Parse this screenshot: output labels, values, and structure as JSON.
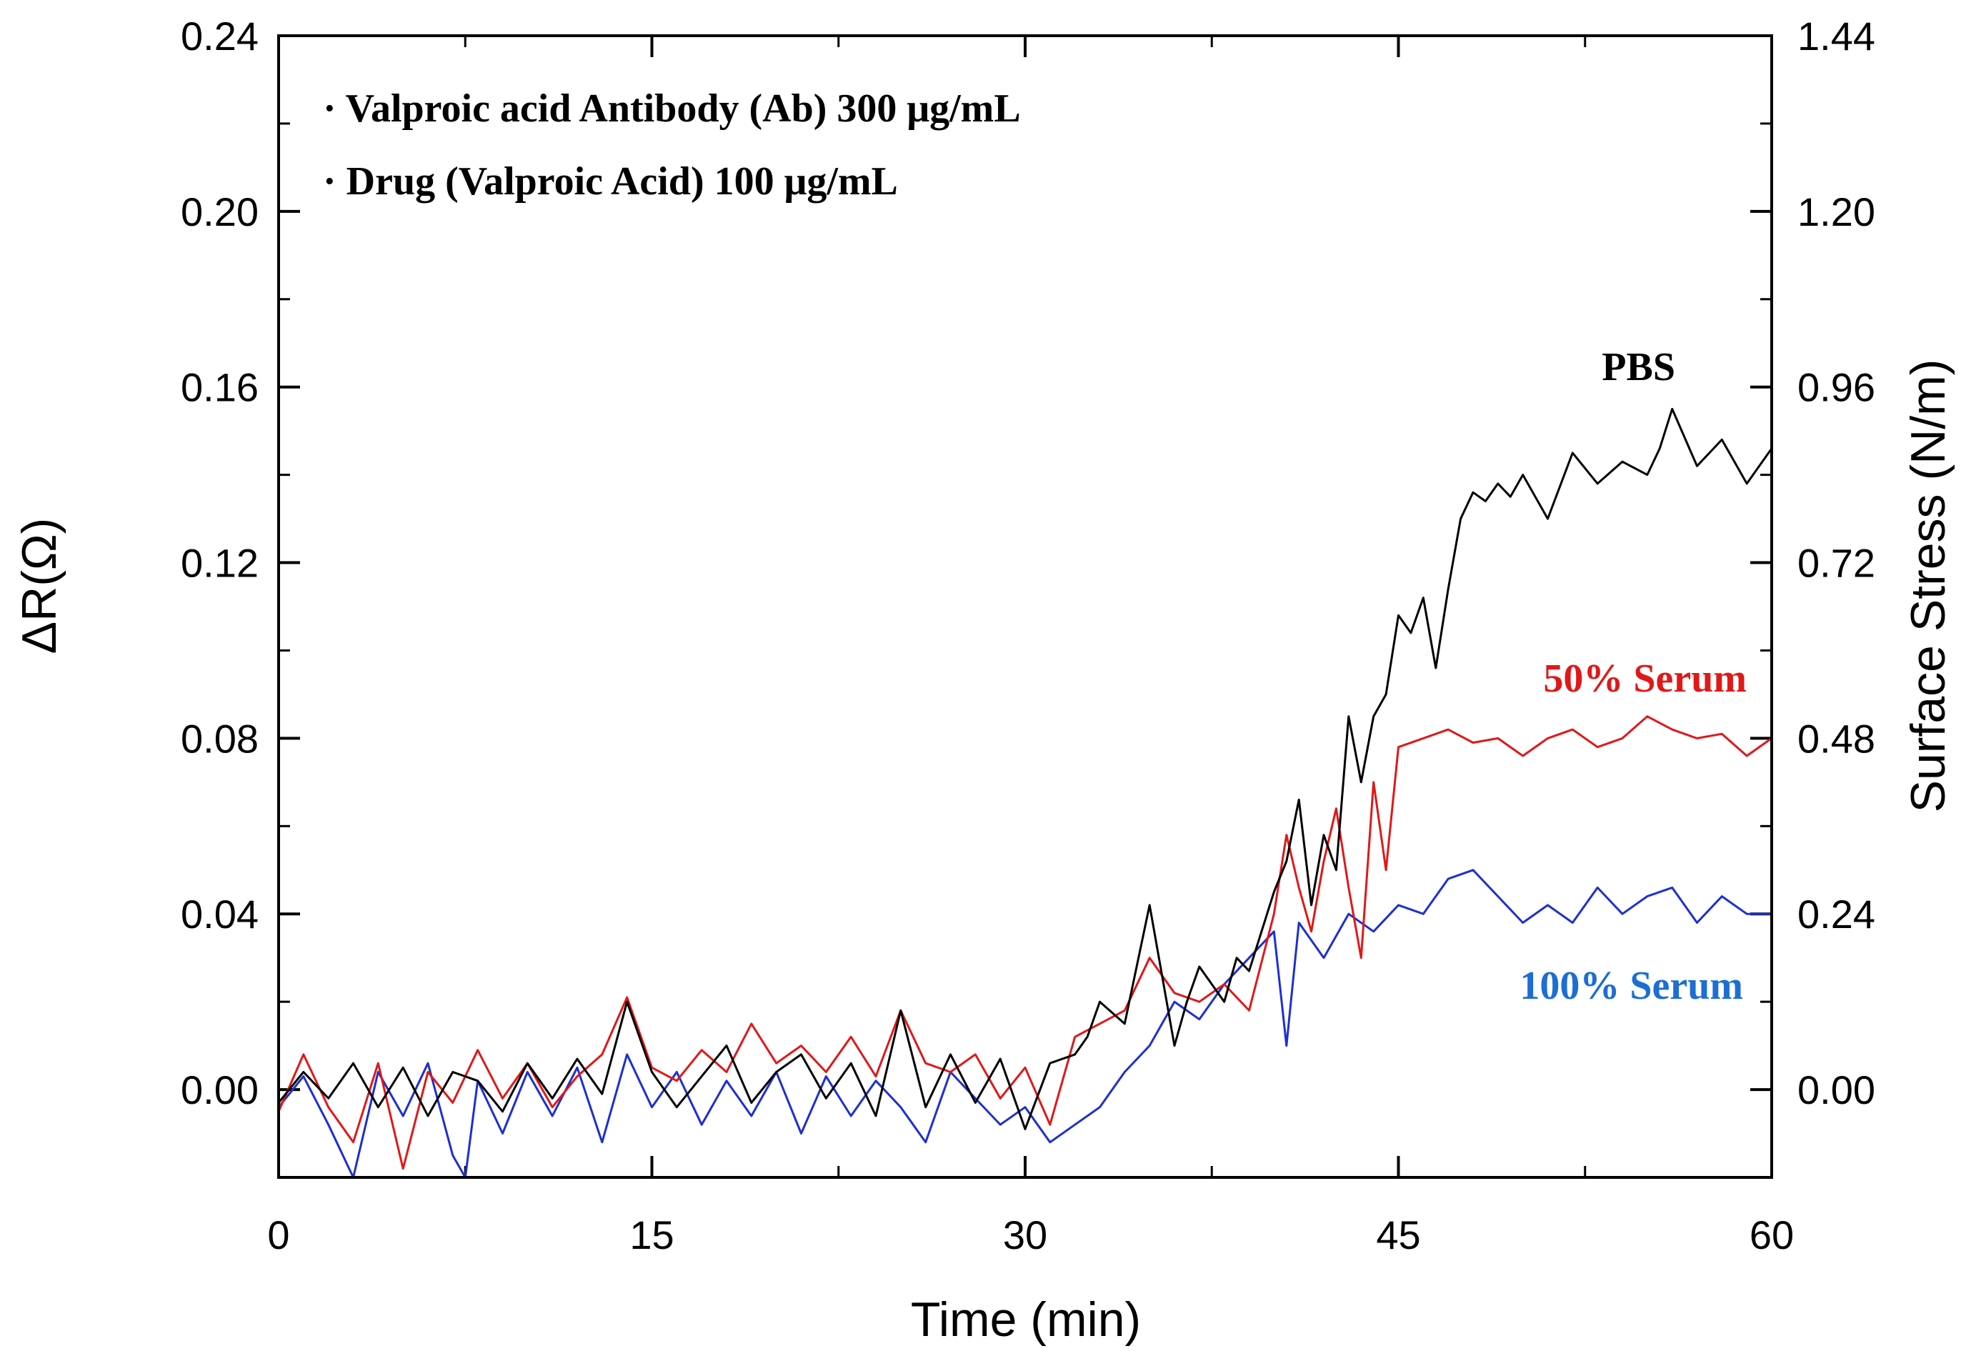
{
  "chart_data": {
    "type": "line",
    "title": "",
    "xlabel": "Time (min)",
    "ylabel": "ΔR(Ω)",
    "y2label": "Surface Stress (N/m)",
    "xlim": [
      0,
      60
    ],
    "ylim": [
      -0.02,
      0.24
    ],
    "y2lim": [
      -0.12,
      1.44
    ],
    "x_ticks": [
      0,
      15,
      30,
      45,
      60
    ],
    "x_tick_labels": [
      "0",
      "15",
      "30",
      "45",
      "60"
    ],
    "y_ticks": [
      0.0,
      0.04,
      0.08,
      0.12,
      0.16,
      0.2,
      0.24
    ],
    "y_tick_labels": [
      "0.00",
      "0.04",
      "0.08",
      "0.12",
      "0.16",
      "0.20",
      "0.24"
    ],
    "y2_ticks": [
      0.0,
      0.24,
      0.48,
      0.72,
      0.96,
      1.2,
      1.44
    ],
    "y2_tick_labels": [
      "0.00",
      "0.24",
      "0.48",
      "0.72",
      "0.96",
      "1.20",
      "1.44"
    ],
    "annotations": [
      "· Valproic acid Antibody (Ab) 300 μg/mL",
      "· Drug (Valproic Acid) 100 μg/mL"
    ],
    "series": [
      {
        "name": "PBS",
        "color": "#000000",
        "x": [
          0,
          1,
          2,
          3,
          4,
          5,
          6,
          7,
          8,
          9,
          10,
          11,
          12,
          13,
          14,
          15,
          16,
          17,
          18,
          19,
          20,
          21,
          22,
          23,
          24,
          25,
          26,
          27,
          28,
          29,
          30,
          31,
          32,
          32.5,
          33,
          34,
          35,
          36,
          36.5,
          37,
          38,
          38.5,
          39,
          40,
          40.5,
          41,
          41.5,
          42,
          42.5,
          43,
          43.5,
          44,
          44.5,
          45,
          45.5,
          46,
          46.5,
          47,
          47.5,
          48,
          48.5,
          49,
          49.5,
          50,
          51,
          52,
          53,
          54,
          55,
          55.5,
          56,
          57,
          58,
          59,
          60
        ],
        "y": [
          -0.003,
          0.004,
          -0.002,
          0.006,
          -0.004,
          0.005,
          -0.006,
          0.004,
          0.002,
          -0.005,
          0.006,
          -0.002,
          0.007,
          -0.001,
          0.02,
          0.004,
          -0.004,
          0.003,
          0.01,
          -0.003,
          0.004,
          0.008,
          -0.002,
          0.006,
          -0.006,
          0.018,
          -0.004,
          0.008,
          -0.003,
          0.007,
          -0.009,
          0.006,
          0.008,
          0.012,
          0.02,
          0.015,
          0.042,
          0.01,
          0.02,
          0.028,
          0.02,
          0.03,
          0.027,
          0.045,
          0.052,
          0.066,
          0.042,
          0.058,
          0.05,
          0.085,
          0.07,
          0.085,
          0.09,
          0.108,
          0.104,
          0.112,
          0.096,
          0.114,
          0.13,
          0.136,
          0.134,
          0.138,
          0.135,
          0.14,
          0.13,
          0.145,
          0.138,
          0.143,
          0.14,
          0.146,
          0.155,
          0.142,
          0.148,
          0.138,
          0.146
        ]
      },
      {
        "name": "50% Serum",
        "color": "#e01818",
        "x": [
          0,
          1,
          2,
          3,
          4,
          5,
          6,
          7,
          8,
          9,
          10,
          11,
          12,
          13,
          14,
          15,
          16,
          17,
          18,
          19,
          20,
          21,
          22,
          23,
          24,
          25,
          26,
          27,
          28,
          29,
          30,
          31,
          32,
          33,
          34,
          35,
          36,
          37,
          38,
          39,
          40,
          40.5,
          41,
          41.5,
          42,
          42.5,
          43,
          43.5,
          44,
          44.5,
          45,
          46,
          47,
          48,
          49,
          50,
          51,
          52,
          53,
          54,
          55,
          56,
          57,
          58,
          59,
          60
        ],
        "y": [
          -0.005,
          0.008,
          -0.004,
          -0.012,
          0.006,
          -0.018,
          0.004,
          -0.003,
          0.009,
          -0.002,
          0.006,
          -0.004,
          0.003,
          0.008,
          0.021,
          0.005,
          0.002,
          0.009,
          0.004,
          0.015,
          0.006,
          0.01,
          0.004,
          0.012,
          0.003,
          0.018,
          0.006,
          0.004,
          0.008,
          -0.002,
          0.005,
          -0.008,
          0.012,
          0.015,
          0.018,
          0.03,
          0.022,
          0.02,
          0.024,
          0.018,
          0.04,
          0.058,
          0.046,
          0.036,
          0.052,
          0.064,
          0.046,
          0.03,
          0.07,
          0.05,
          0.078,
          0.08,
          0.082,
          0.079,
          0.08,
          0.076,
          0.08,
          0.082,
          0.078,
          0.08,
          0.085,
          0.082,
          0.08,
          0.081,
          0.076,
          0.08
        ]
      },
      {
        "name": "100% Serum",
        "color": "#1c2fd4",
        "x": [
          0,
          1,
          2,
          3,
          4,
          5,
          6,
          7,
          7.5,
          8,
          9,
          10,
          11,
          12,
          13,
          14,
          15,
          16,
          17,
          18,
          19,
          20,
          21,
          22,
          23,
          24,
          25,
          26,
          27,
          28,
          29,
          30,
          31,
          32,
          33,
          34,
          35,
          36,
          37,
          38,
          39,
          40,
          40.5,
          41,
          42,
          43,
          44,
          45,
          46,
          47,
          48,
          49,
          50,
          51,
          52,
          53,
          54,
          55,
          56,
          57,
          58,
          59,
          60
        ],
        "y": [
          -0.004,
          0.003,
          -0.008,
          -0.02,
          0.004,
          -0.006,
          0.006,
          -0.015,
          -0.02,
          0.002,
          -0.01,
          0.004,
          -0.006,
          0.005,
          -0.012,
          0.008,
          -0.004,
          0.004,
          -0.008,
          0.002,
          -0.006,
          0.004,
          -0.01,
          0.003,
          -0.006,
          0.002,
          -0.004,
          -0.012,
          0.004,
          -0.002,
          -0.008,
          -0.004,
          -0.012,
          -0.008,
          -0.004,
          0.004,
          0.01,
          0.02,
          0.016,
          0.024,
          0.03,
          0.036,
          0.01,
          0.038,
          0.03,
          0.04,
          0.036,
          0.042,
          0.04,
          0.048,
          0.05,
          0.044,
          0.038,
          0.042,
          0.038,
          0.046,
          0.04,
          0.044,
          0.046,
          0.038,
          0.044,
          0.04,
          0.04
        ]
      }
    ]
  }
}
